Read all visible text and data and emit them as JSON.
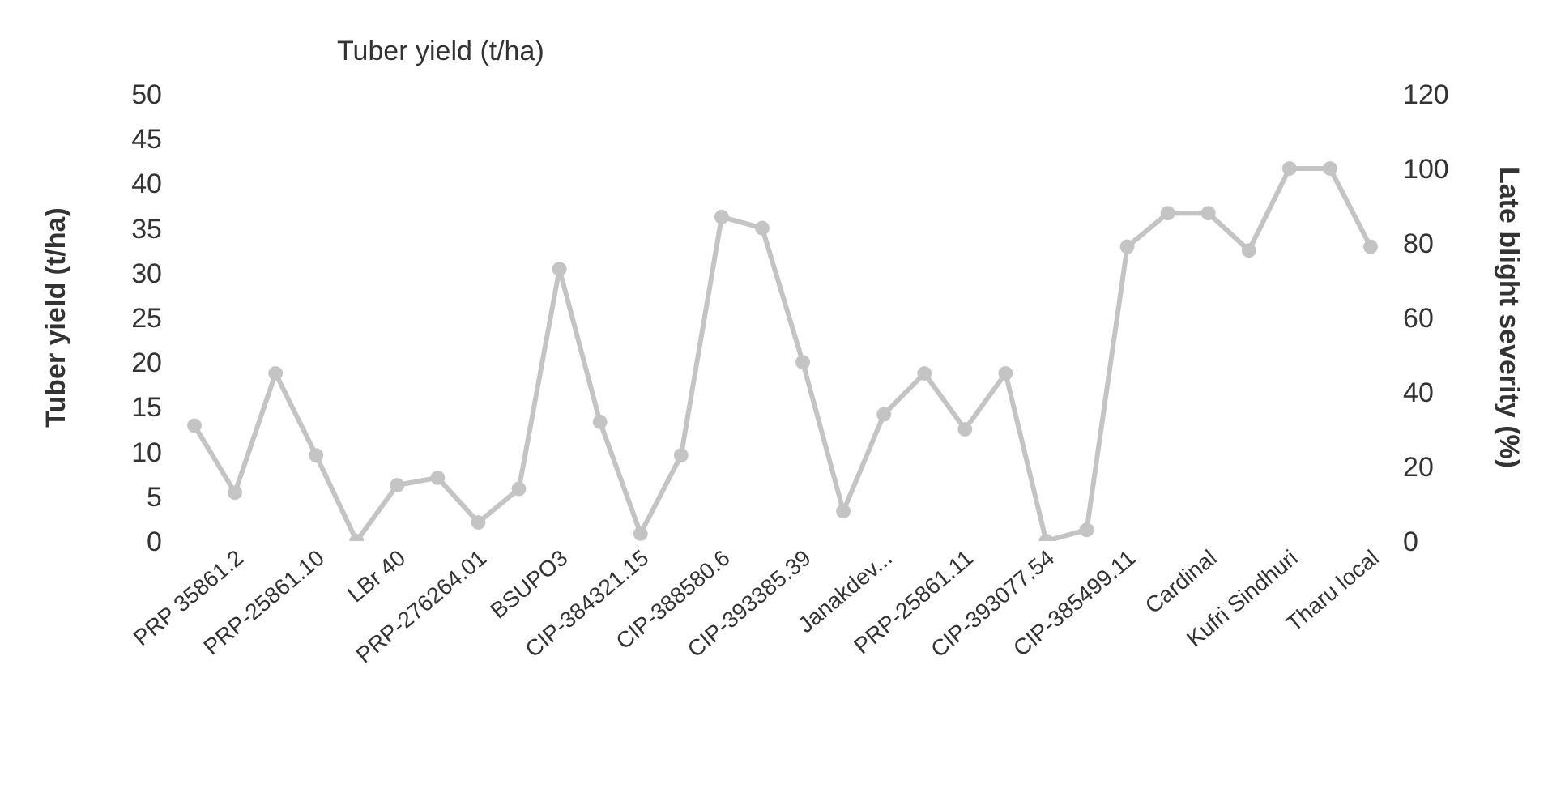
{
  "chart_data": {
    "type": "line",
    "title": "Tuber yield (t/ha)",
    "ylabel": "Tuber yield (t/ha)",
    "y2label": "Late blight severity (%)",
    "categories": [
      null,
      "PRP 35861.2",
      null,
      "PRP-25861.10",
      null,
      "LBr 40",
      null,
      "PRP-276264.01",
      null,
      "BSUPO3",
      null,
      "CIP-384321.15",
      null,
      "CIP-388580.6",
      null,
      "CIP-393385.39",
      null,
      "Janakdev...",
      null,
      "PRP-25861.11",
      null,
      "CIP-393077.54",
      null,
      "CIP-385499.11",
      null,
      "Cardinal",
      null,
      "Kufri Sindhuri",
      null,
      "Tharu local"
    ],
    "series": [
      {
        "color": "#c4c4c4",
        "axis": "y2",
        "values": [
          31,
          13,
          45,
          23,
          0,
          15,
          17,
          5,
          14,
          73,
          32,
          2,
          23,
          87,
          84,
          48,
          8,
          34,
          45,
          30,
          45,
          0,
          3,
          79,
          88,
          88,
          78,
          100,
          100,
          79
        ]
      }
    ],
    "ylim": [
      0,
      50
    ],
    "yticks": [
      0,
      5,
      10,
      15,
      20,
      25,
      30,
      35,
      40,
      45,
      50
    ],
    "y2lim": [
      0,
      120
    ],
    "y2ticks": [
      0,
      20,
      40,
      60,
      80,
      100,
      120
    ],
    "grid": false,
    "legend": false,
    "marker": "circle",
    "line_style": "solid"
  }
}
